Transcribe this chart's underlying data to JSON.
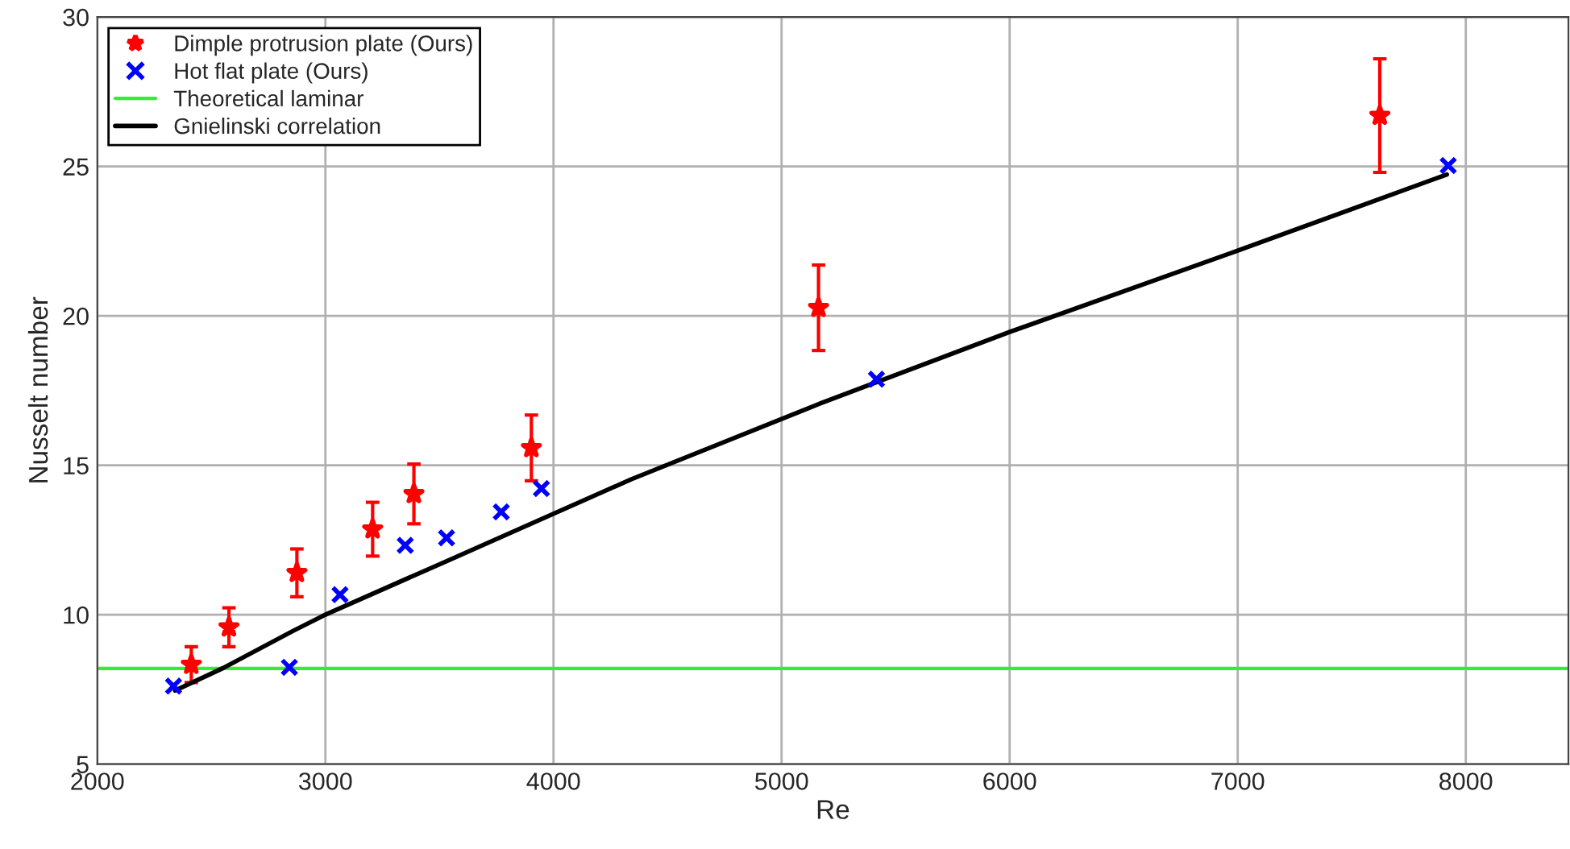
{
  "chart_data": {
    "type": "scatter",
    "xlabel": "Re",
    "ylabel": "Nusselt number",
    "xlim": [
      2000,
      8450
    ],
    "ylim": [
      5,
      30
    ],
    "xticks": [
      2000,
      3000,
      4000,
      5000,
      6000,
      7000,
      8000
    ],
    "yticks": [
      5,
      10,
      15,
      20,
      25,
      30
    ],
    "grid": true,
    "legend": "top left",
    "series": [
      {
        "name": "Dimple protrusion plate (Ours)",
        "marker": "star",
        "color": "#ff0000",
        "x": [
          2412,
          2577,
          2875,
          3207,
          3388,
          3903,
          5162,
          7623
        ],
        "values": [
          8.33,
          9.58,
          11.4,
          12.86,
          14.04,
          15.58,
          20.27,
          26.7
        ],
        "errors": [
          0.6,
          0.65,
          0.8,
          0.9,
          1.0,
          1.1,
          1.43,
          1.9
        ]
      },
      {
        "name": "Hot flat plate (Ours)",
        "marker": "cross",
        "color": "#0000ff",
        "x": [
          2334,
          2842,
          3064,
          3350,
          3531,
          3771,
          3947,
          5416,
          7923
        ],
        "values": [
          7.61,
          8.24,
          10.67,
          12.32,
          12.57,
          13.44,
          14.22,
          17.88,
          25.03
        ]
      },
      {
        "name": "Gnielinski correlation",
        "type": "line",
        "marker": "none",
        "line_style": "solid",
        "color": "#000000",
        "x": [
          2341,
          2553,
          2859,
          3000,
          3531,
          4341,
          5164,
          6000,
          7000,
          7917
        ],
        "values": [
          7.46,
          8.22,
          9.46,
          10.0,
          11.79,
          14.53,
          17.05,
          19.46,
          22.18,
          24.73
        ]
      }
    ],
    "ref_lines": [
      {
        "axis": "y",
        "value": 8.2,
        "label": "Theoretical laminar",
        "color": "#33ee33",
        "line_style": "solid"
      }
    ]
  }
}
